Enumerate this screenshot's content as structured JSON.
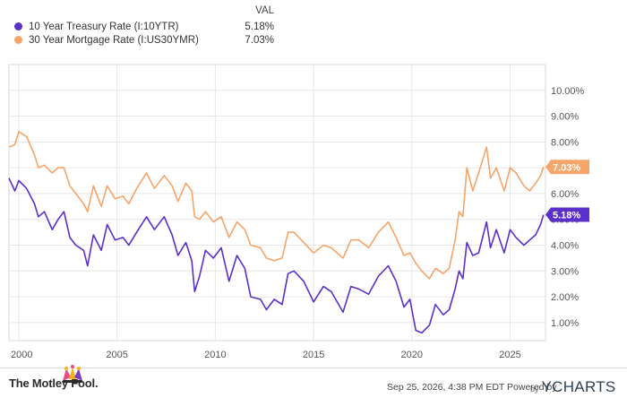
{
  "legend": {
    "header": "VAL",
    "items": [
      {
        "label": "10 Year Treasury Rate (I:10YTR)",
        "value": "5.18%",
        "color": "#5b2fc9"
      },
      {
        "label": "30 Year Mortgage Rate (I:US30YMR)",
        "value": "7.03%",
        "color": "#f5a46a"
      }
    ]
  },
  "footer": {
    "brand": "The Motley Fool.",
    "timestamp": "Sep 25, 2026, 4:38 PM EDT Powered by",
    "ycharts_prefix": "by",
    "ycharts": "YCHARTS"
  },
  "chart_data": {
    "type": "line",
    "x_ticks": [
      "2000",
      "2005",
      "2010",
      "2015",
      "2020",
      "2025"
    ],
    "y_ticks": [
      "1.00%",
      "2.00%",
      "3.00%",
      "4.00%",
      "5.00%",
      "6.00%",
      "7.00%",
      "8.00%",
      "9.00%",
      "10.00%"
    ],
    "ylim": [
      0.3,
      11.0
    ],
    "xlim": [
      1999.5,
      2026.8
    ],
    "grid": true,
    "legend_position": "top-left",
    "series": [
      {
        "name": "10 Year Treasury Rate (I:10YTR)",
        "color": "#5b2fc9",
        "end_label": "5.18%",
        "points": [
          [
            1999.5,
            6.6
          ],
          [
            1999.8,
            6.1
          ],
          [
            2000.0,
            6.5
          ],
          [
            2000.4,
            6.2
          ],
          [
            2000.8,
            5.6
          ],
          [
            2001.0,
            5.1
          ],
          [
            2001.3,
            5.3
          ],
          [
            2001.7,
            4.6
          ],
          [
            2002.0,
            5.0
          ],
          [
            2002.3,
            5.3
          ],
          [
            2002.6,
            4.3
          ],
          [
            2002.9,
            4.0
          ],
          [
            2003.3,
            3.8
          ],
          [
            2003.5,
            3.2
          ],
          [
            2003.8,
            4.4
          ],
          [
            2004.2,
            3.8
          ],
          [
            2004.5,
            4.8
          ],
          [
            2004.9,
            4.2
          ],
          [
            2005.3,
            4.3
          ],
          [
            2005.6,
            4.0
          ],
          [
            2006.0,
            4.5
          ],
          [
            2006.5,
            5.1
          ],
          [
            2006.9,
            4.6
          ],
          [
            2007.4,
            5.1
          ],
          [
            2007.8,
            4.4
          ],
          [
            2008.1,
            3.6
          ],
          [
            2008.5,
            4.1
          ],
          [
            2008.8,
            3.4
          ],
          [
            2008.95,
            2.2
          ],
          [
            2009.2,
            2.8
          ],
          [
            2009.5,
            3.8
          ],
          [
            2009.9,
            3.5
          ],
          [
            2010.3,
            3.9
          ],
          [
            2010.7,
            2.6
          ],
          [
            2011.1,
            3.6
          ],
          [
            2011.5,
            3.1
          ],
          [
            2011.8,
            2.0
          ],
          [
            2012.3,
            1.9
          ],
          [
            2012.6,
            1.5
          ],
          [
            2013.0,
            1.9
          ],
          [
            2013.4,
            1.7
          ],
          [
            2013.7,
            2.9
          ],
          [
            2014.0,
            3.0
          ],
          [
            2014.5,
            2.6
          ],
          [
            2015.0,
            1.8
          ],
          [
            2015.5,
            2.4
          ],
          [
            2015.9,
            2.2
          ],
          [
            2016.5,
            1.4
          ],
          [
            2016.9,
            2.4
          ],
          [
            2017.3,
            2.3
          ],
          [
            2017.8,
            2.1
          ],
          [
            2018.3,
            2.8
          ],
          [
            2018.8,
            3.2
          ],
          [
            2019.2,
            2.6
          ],
          [
            2019.6,
            1.6
          ],
          [
            2019.9,
            1.9
          ],
          [
            2020.2,
            0.7
          ],
          [
            2020.5,
            0.6
          ],
          [
            2020.9,
            0.9
          ],
          [
            2021.2,
            1.7
          ],
          [
            2021.6,
            1.3
          ],
          [
            2021.9,
            1.5
          ],
          [
            2022.2,
            2.3
          ],
          [
            2022.4,
            3.0
          ],
          [
            2022.6,
            2.7
          ],
          [
            2022.8,
            4.1
          ],
          [
            2023.1,
            3.6
          ],
          [
            2023.4,
            3.7
          ],
          [
            2023.8,
            4.9
          ],
          [
            2024.0,
            3.9
          ],
          [
            2024.3,
            4.6
          ],
          [
            2024.7,
            3.7
          ],
          [
            2025.0,
            4.6
          ],
          [
            2025.3,
            4.3
          ],
          [
            2025.7,
            4.0
          ],
          [
            2026.0,
            4.2
          ],
          [
            2026.3,
            4.4
          ],
          [
            2026.55,
            4.8
          ],
          [
            2026.7,
            5.18
          ]
        ]
      },
      {
        "name": "30 Year Mortgage Rate (I:US30YMR)",
        "color": "#f5a46a",
        "end_label": "7.03%",
        "points": [
          [
            1999.5,
            7.8
          ],
          [
            1999.8,
            7.9
          ],
          [
            2000.0,
            8.4
          ],
          [
            2000.4,
            8.2
          ],
          [
            2000.8,
            7.5
          ],
          [
            2001.0,
            7.0
          ],
          [
            2001.3,
            7.1
          ],
          [
            2001.7,
            6.8
          ],
          [
            2002.0,
            7.0
          ],
          [
            2002.3,
            7.0
          ],
          [
            2002.6,
            6.3
          ],
          [
            2002.9,
            6.0
          ],
          [
            2003.3,
            5.6
          ],
          [
            2003.5,
            5.3
          ],
          [
            2003.8,
            6.3
          ],
          [
            2004.2,
            5.5
          ],
          [
            2004.5,
            6.3
          ],
          [
            2004.9,
            5.8
          ],
          [
            2005.3,
            5.9
          ],
          [
            2005.6,
            5.6
          ],
          [
            2006.0,
            6.2
          ],
          [
            2006.5,
            6.8
          ],
          [
            2006.9,
            6.2
          ],
          [
            2007.4,
            6.7
          ],
          [
            2007.8,
            6.3
          ],
          [
            2008.1,
            5.7
          ],
          [
            2008.5,
            6.4
          ],
          [
            2008.8,
            6.1
          ],
          [
            2008.95,
            5.1
          ],
          [
            2009.2,
            5.0
          ],
          [
            2009.5,
            5.3
          ],
          [
            2009.9,
            4.9
          ],
          [
            2010.3,
            5.1
          ],
          [
            2010.7,
            4.3
          ],
          [
            2011.1,
            4.9
          ],
          [
            2011.5,
            4.6
          ],
          [
            2011.8,
            4.0
          ],
          [
            2012.3,
            3.9
          ],
          [
            2012.6,
            3.5
          ],
          [
            2013.0,
            3.4
          ],
          [
            2013.4,
            3.5
          ],
          [
            2013.7,
            4.5
          ],
          [
            2014.0,
            4.5
          ],
          [
            2014.5,
            4.1
          ],
          [
            2015.0,
            3.7
          ],
          [
            2015.5,
            4.0
          ],
          [
            2015.9,
            3.9
          ],
          [
            2016.5,
            3.5
          ],
          [
            2016.9,
            4.2
          ],
          [
            2017.3,
            4.2
          ],
          [
            2017.8,
            3.9
          ],
          [
            2018.3,
            4.5
          ],
          [
            2018.8,
            4.9
          ],
          [
            2019.2,
            4.3
          ],
          [
            2019.6,
            3.6
          ],
          [
            2019.9,
            3.7
          ],
          [
            2020.2,
            3.3
          ],
          [
            2020.5,
            3.0
          ],
          [
            2020.9,
            2.7
          ],
          [
            2021.2,
            3.1
          ],
          [
            2021.6,
            2.9
          ],
          [
            2021.9,
            3.1
          ],
          [
            2022.2,
            4.2
          ],
          [
            2022.4,
            5.3
          ],
          [
            2022.6,
            5.1
          ],
          [
            2022.8,
            7.0
          ],
          [
            2023.1,
            6.1
          ],
          [
            2023.4,
            6.8
          ],
          [
            2023.8,
            7.8
          ],
          [
            2024.0,
            6.6
          ],
          [
            2024.3,
            7.0
          ],
          [
            2024.7,
            6.1
          ],
          [
            2025.0,
            7.0
          ],
          [
            2025.3,
            6.8
          ],
          [
            2025.7,
            6.3
          ],
          [
            2026.0,
            6.1
          ],
          [
            2026.3,
            6.4
          ],
          [
            2026.55,
            6.7
          ],
          [
            2026.7,
            7.03
          ]
        ]
      }
    ]
  }
}
